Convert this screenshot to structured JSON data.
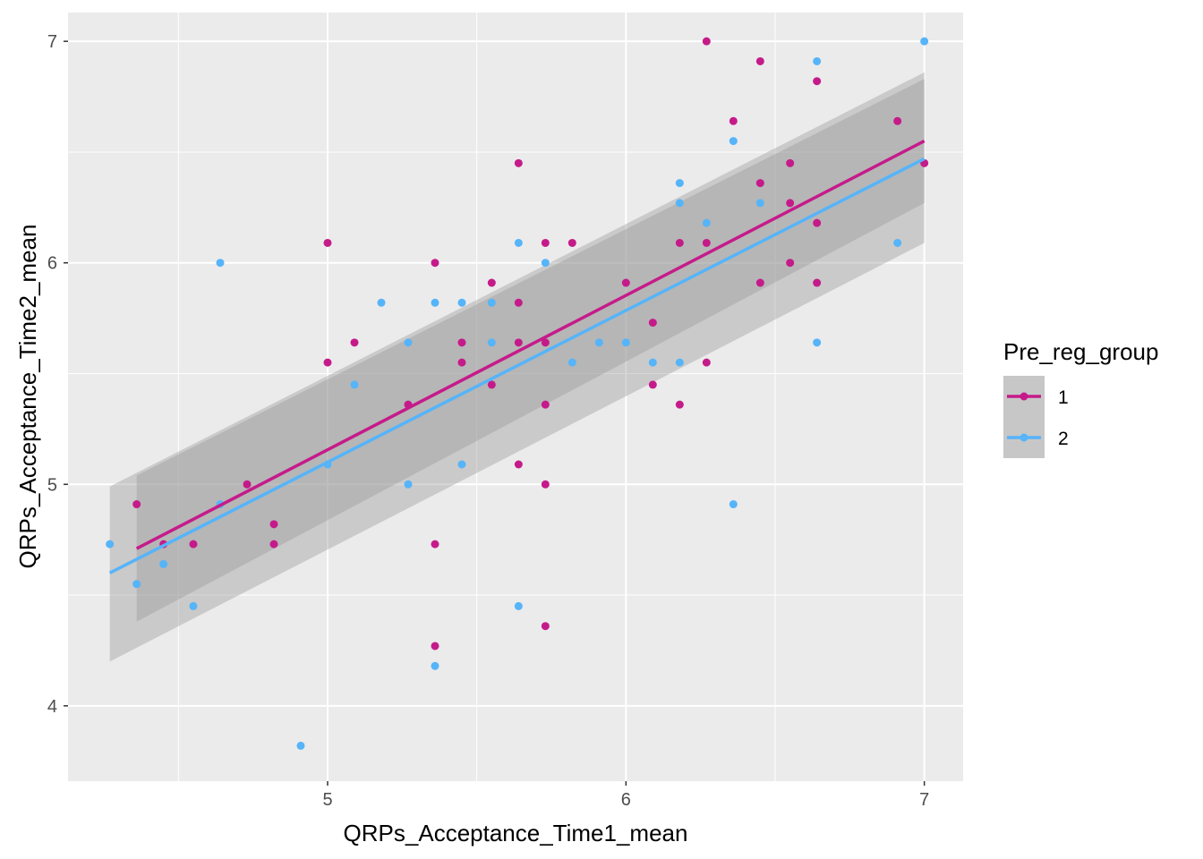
{
  "chart_data": {
    "type": "scatter",
    "xlabel": "QRPs_Acceptance_Time1_mean",
    "ylabel": "QRPs_Acceptance_Time2_mean",
    "xlim": [
      4.13,
      7.13
    ],
    "ylim": [
      3.66,
      7.13
    ],
    "x_ticks": [
      5,
      6,
      7
    ],
    "x_tick_labels": [
      "5",
      "6",
      "7"
    ],
    "y_ticks": [
      4,
      5,
      6,
      7
    ],
    "y_tick_labels": [
      "4",
      "5",
      "6",
      "7"
    ],
    "grid": true,
    "panel_background": "#EBEBEB",
    "legend": {
      "title": "Pre_reg_group",
      "position": "right",
      "entries": [
        "1",
        "2"
      ]
    },
    "series": [
      {
        "name": "1",
        "color": "#C51B8A",
        "points": [
          [
            4.36,
            4.91
          ],
          [
            4.45,
            4.73
          ],
          [
            4.55,
            4.73
          ],
          [
            4.73,
            5.0
          ],
          [
            4.82,
            4.82
          ],
          [
            4.82,
            4.73
          ],
          [
            5.0,
            6.09
          ],
          [
            5.0,
            5.55
          ],
          [
            5.09,
            5.64
          ],
          [
            5.27,
            5.36
          ],
          [
            5.36,
            6.0
          ],
          [
            5.36,
            4.73
          ],
          [
            5.36,
            4.27
          ],
          [
            5.45,
            5.64
          ],
          [
            5.45,
            5.55
          ],
          [
            5.55,
            5.91
          ],
          [
            5.55,
            5.45
          ],
          [
            5.64,
            6.45
          ],
          [
            5.64,
            5.82
          ],
          [
            5.64,
            5.64
          ],
          [
            5.64,
            5.09
          ],
          [
            5.73,
            6.09
          ],
          [
            5.73,
            5.64
          ],
          [
            5.73,
            5.36
          ],
          [
            5.73,
            5.0
          ],
          [
            5.73,
            4.36
          ],
          [
            5.82,
            6.09
          ],
          [
            6.0,
            5.91
          ],
          [
            6.09,
            5.73
          ],
          [
            6.09,
            5.45
          ],
          [
            6.18,
            6.09
          ],
          [
            6.18,
            5.36
          ],
          [
            6.27,
            7.0
          ],
          [
            6.27,
            6.09
          ],
          [
            6.27,
            5.55
          ],
          [
            6.36,
            6.64
          ],
          [
            6.45,
            6.91
          ],
          [
            6.45,
            6.36
          ],
          [
            6.45,
            5.91
          ],
          [
            6.55,
            6.45
          ],
          [
            6.55,
            6.27
          ],
          [
            6.55,
            6.0
          ],
          [
            6.64,
            6.82
          ],
          [
            6.64,
            6.18
          ],
          [
            6.64,
            5.91
          ],
          [
            6.91,
            6.64
          ],
          [
            7.0,
            6.45
          ]
        ],
        "fit": {
          "x": [
            4.36,
            7.0
          ],
          "y": [
            4.71,
            6.55
          ],
          "ci_lower": [
            4.38,
            6.27
          ],
          "ci_upper": [
            5.04,
            6.83
          ]
        }
      },
      {
        "name": "2",
        "color": "#56B4F9",
        "points": [
          [
            4.27,
            4.73
          ],
          [
            4.36,
            4.55
          ],
          [
            4.45,
            4.64
          ],
          [
            4.55,
            4.45
          ],
          [
            4.64,
            6.0
          ],
          [
            4.64,
            4.91
          ],
          [
            4.91,
            3.82
          ],
          [
            5.0,
            5.09
          ],
          [
            5.09,
            5.45
          ],
          [
            5.18,
            5.82
          ],
          [
            5.27,
            5.64
          ],
          [
            5.27,
            5.0
          ],
          [
            5.36,
            5.82
          ],
          [
            5.36,
            4.18
          ],
          [
            5.45,
            5.82
          ],
          [
            5.45,
            5.09
          ],
          [
            5.55,
            5.82
          ],
          [
            5.55,
            5.64
          ],
          [
            5.64,
            6.09
          ],
          [
            5.64,
            4.45
          ],
          [
            5.73,
            6.0
          ],
          [
            5.82,
            5.55
          ],
          [
            5.91,
            5.64
          ],
          [
            6.0,
            5.64
          ],
          [
            6.09,
            5.55
          ],
          [
            6.18,
            6.36
          ],
          [
            6.18,
            6.27
          ],
          [
            6.18,
            5.55
          ],
          [
            6.27,
            6.18
          ],
          [
            6.36,
            6.55
          ],
          [
            6.36,
            4.91
          ],
          [
            6.45,
            6.27
          ],
          [
            6.64,
            6.91
          ],
          [
            6.64,
            5.64
          ],
          [
            6.91,
            6.09
          ],
          [
            7.0,
            7.0
          ]
        ],
        "fit": {
          "x": [
            4.27,
            7.0
          ],
          "y": [
            4.6,
            6.47
          ],
          "ci_lower": [
            4.2,
            6.09
          ],
          "ci_upper": [
            4.99,
            6.86
          ]
        }
      }
    ]
  }
}
